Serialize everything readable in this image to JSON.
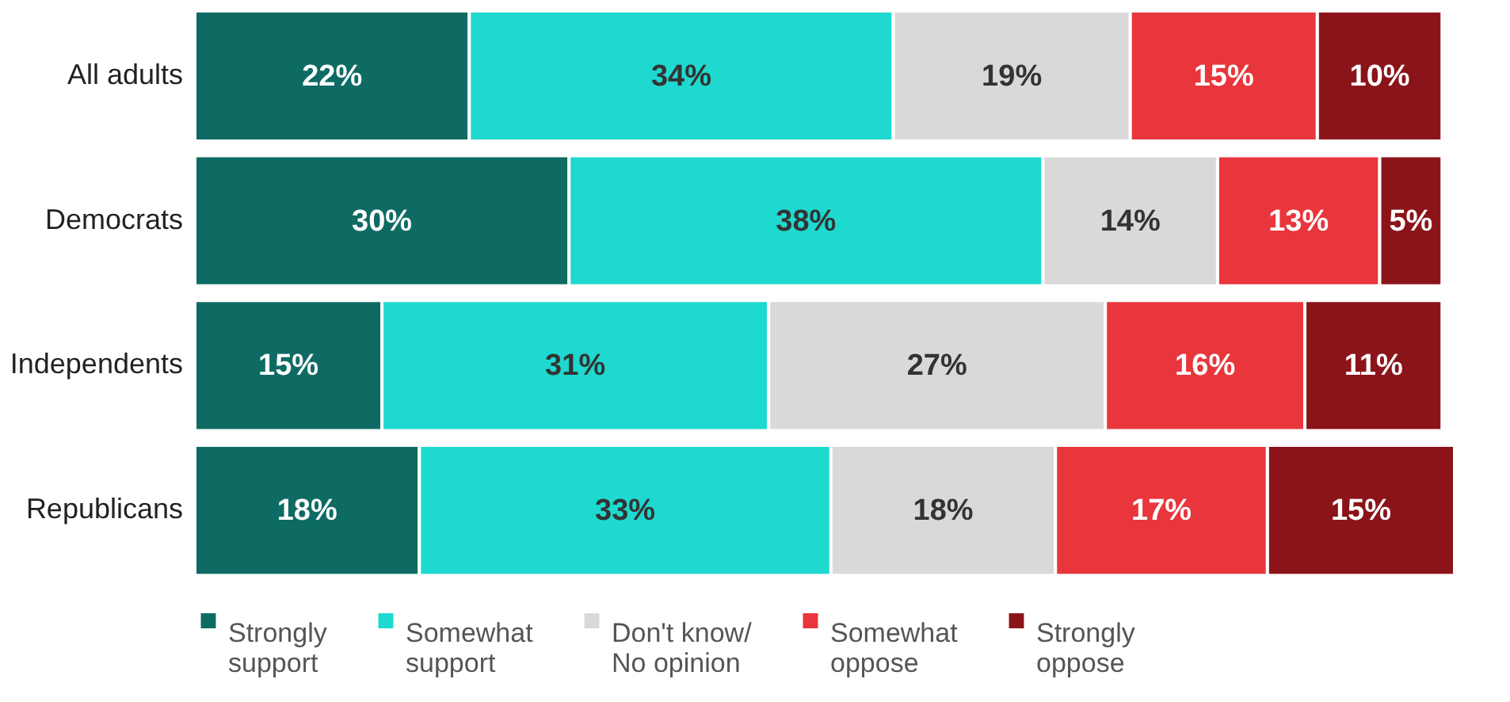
{
  "chart_data": {
    "type": "bar",
    "orientation": "horizontal",
    "stacked": true,
    "legend": "bottom",
    "grid": false,
    "tick_labels": "y",
    "categories": [
      "All adults",
      "Democrats",
      "Independents",
      "Republicans"
    ],
    "series": [
      {
        "name": "Strongly support",
        "color": "#0e6b63",
        "values": [
          22,
          30,
          15,
          18
        ],
        "value_labels": [
          "22%",
          "30%",
          "15%",
          "18%"
        ]
      },
      {
        "name": "Somewhat support",
        "color": "#1ed9cf",
        "values": [
          34,
          38,
          31,
          33
        ],
        "value_labels": [
          "34%",
          "38%",
          "31%",
          "33%"
        ]
      },
      {
        "name": "Don't know/ No opinion",
        "color": "#d9d9d9",
        "values": [
          19,
          14,
          27,
          18
        ],
        "value_labels": [
          "19%",
          "14%",
          "27%",
          "18%"
        ]
      },
      {
        "name": "Somewhat oppose",
        "color": "#e8363c",
        "values": [
          15,
          13,
          16,
          17
        ],
        "value_labels": [
          "15%",
          "13%",
          "16%",
          "17%"
        ]
      },
      {
        "name": "Strongly oppose",
        "color": "#8a1419",
        "values": [
          10,
          5,
          11,
          15
        ],
        "value_labels": [
          "10%",
          "5%",
          "11%",
          "15%"
        ]
      }
    ]
  }
}
